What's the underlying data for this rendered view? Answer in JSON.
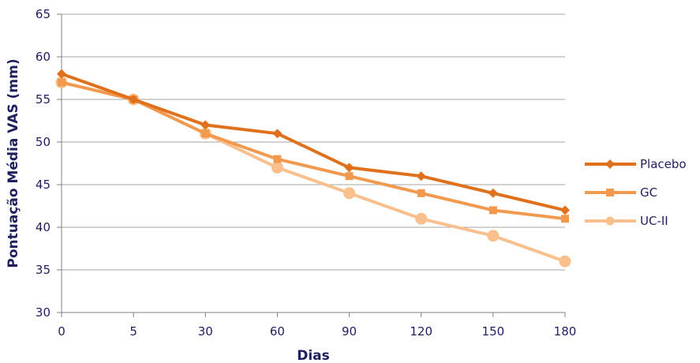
{
  "chart_data": {
    "type": "line",
    "categories": [
      "0",
      "5",
      "30",
      "60",
      "90",
      "120",
      "150",
      "180"
    ],
    "xlabel": "Dias",
    "ylabel": "Pontuação Média VAS (mm)",
    "ylim": [
      30,
      65
    ],
    "ytick_step": 5,
    "grid": true,
    "legend_position": "right",
    "series": [
      {
        "name": "Placebo",
        "color": "#e0711c",
        "marker": "diamond",
        "values": [
          58,
          55,
          52,
          51,
          47,
          46,
          44,
          42
        ]
      },
      {
        "name": "GC",
        "color": "#f19a4f",
        "marker": "square",
        "values": [
          57,
          55,
          51,
          48,
          46,
          44,
          42,
          41
        ]
      },
      {
        "name": "UC-II",
        "color": "#f9c08e",
        "marker": "circle",
        "values": [
          57,
          55,
          51,
          47,
          44,
          41,
          39,
          36
        ]
      }
    ]
  }
}
